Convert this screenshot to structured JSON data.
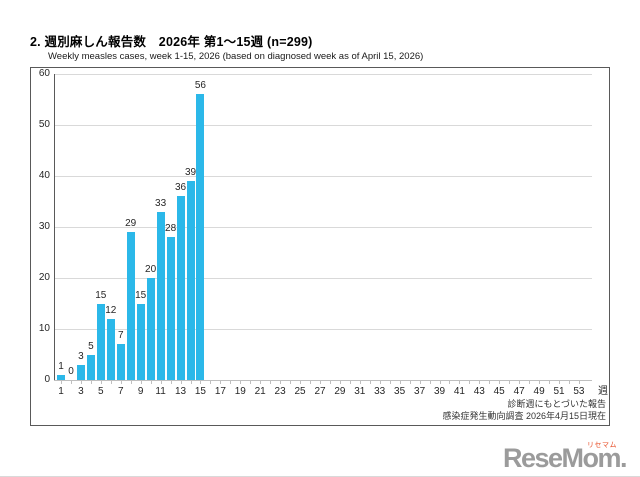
{
  "page": {
    "title": "2. 週別麻しん報告数　2026年 第1～15週 (n=299)",
    "subtitle": "Weekly measles cases, week 1-15, 2026 (based on diagnosed week as of April 15, 2026)",
    "footnote_line1": "診断週にもとづいた報告",
    "footnote_line2": "感染症発生動向調査 2026年4月15日現在",
    "logo": {
      "text": "ReseMom.",
      "ruby": "リセマム"
    }
  },
  "chart_data": {
    "type": "bar",
    "title": "2. 週別麻しん報告数　2026年 第1～15週 (n=299)",
    "subtitle": "Weekly measles cases, week 1-15, 2026 (based on diagnosed week as of April 15, 2026)",
    "categories": [
      1,
      2,
      3,
      4,
      5,
      6,
      7,
      8,
      9,
      10,
      11,
      12,
      13,
      14,
      15
    ],
    "values": [
      1,
      0,
      3,
      5,
      15,
      12,
      7,
      29,
      15,
      20,
      33,
      28,
      36,
      39,
      56
    ],
    "total_n": 299,
    "x_axis": {
      "label": "週",
      "tick_labels": [
        1,
        3,
        5,
        7,
        9,
        11,
        13,
        15,
        17,
        19,
        21,
        23,
        25,
        27,
        29,
        31,
        33,
        35,
        37,
        39,
        41,
        43,
        45,
        47,
        49,
        51,
        53
      ],
      "range": [
        1,
        53
      ]
    },
    "y_axis": {
      "ticks": [
        0,
        10,
        20,
        30,
        40,
        50,
        60
      ],
      "range": [
        0,
        60
      ]
    },
    "bar_color": "#2bb8e9",
    "grid": true,
    "legend": false,
    "data_labels": true
  }
}
